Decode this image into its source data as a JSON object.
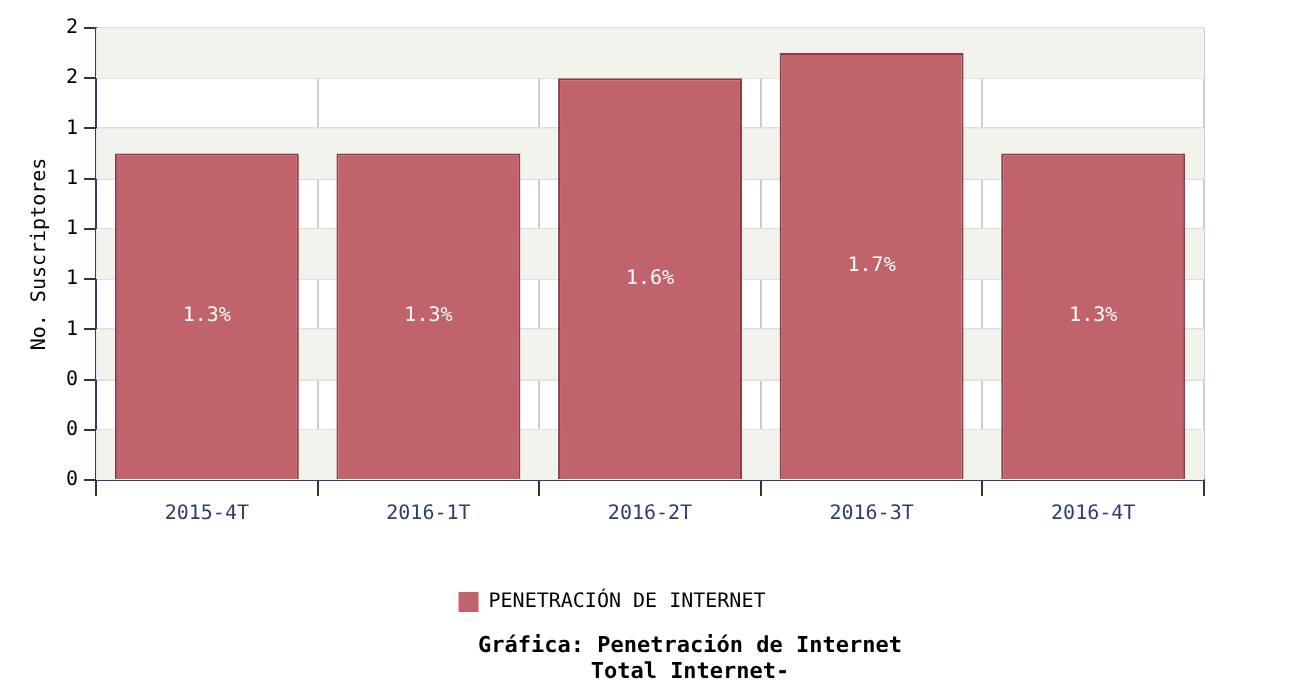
{
  "chart_data": {
    "type": "bar",
    "title": "Gráfica: Penetración de Internet",
    "subtitle": "Total Internet-",
    "ylabel": "No. Suscriptores",
    "categories": [
      "2015-4T",
      "2016-1T",
      "2016-2T",
      "2016-3T",
      "2016-4T"
    ],
    "series": [
      {
        "name": "PENETRACIÓN DE INTERNET",
        "color": "#c0636b",
        "values": [
          1.3,
          1.3,
          1.6,
          1.7,
          1.3
        ],
        "value_labels": [
          "1.3%",
          "1.3%",
          "1.6%",
          "1.7%",
          "1.3%"
        ]
      }
    ],
    "ylim": [
      0,
      1.8
    ],
    "yticks": [
      {
        "value": 0,
        "label": "0"
      },
      {
        "value": 0.2,
        "label": "0"
      },
      {
        "value": 0.4,
        "label": "0"
      },
      {
        "value": 0.6,
        "label": "1"
      },
      {
        "value": 0.8,
        "label": "1"
      },
      {
        "value": 1,
        "label": "1"
      },
      {
        "value": 1.2,
        "label": "1"
      },
      {
        "value": 1.4,
        "label": "1"
      },
      {
        "value": 1.6,
        "label": "2"
      },
      {
        "value": 1.8,
        "label": "2"
      }
    ],
    "grid": true,
    "legend": "bottom"
  }
}
